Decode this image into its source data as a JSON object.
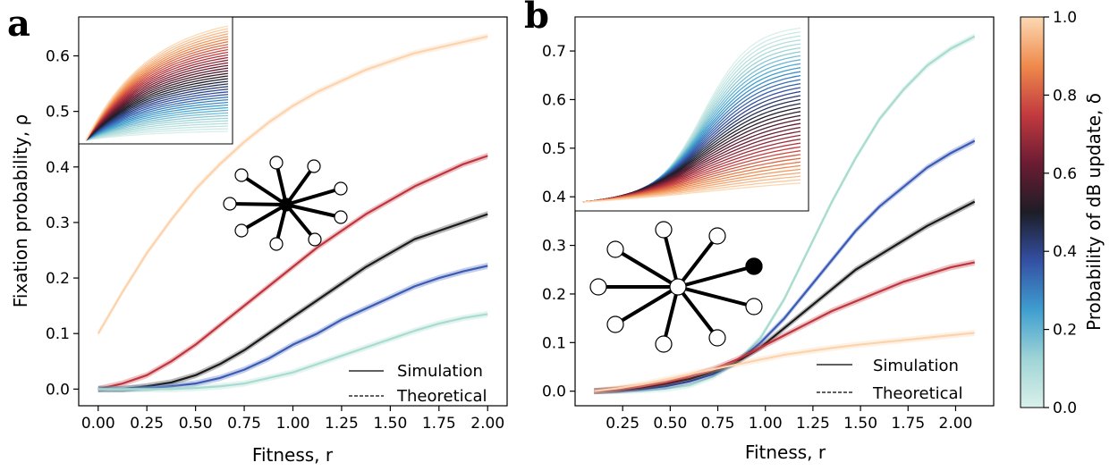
{
  "figure": {
    "panel_a_letter": "a",
    "panel_b_letter": "b"
  },
  "colorbar": {
    "label": "Probability of dB update, δ",
    "ticks": [
      "0.0",
      "0.2",
      "0.4",
      "0.6",
      "0.8",
      "1.0"
    ],
    "colors": [
      "#d9f0ea",
      "#9fd4d6",
      "#3f9ed0",
      "#3450a3",
      "#1d1d26",
      "#6b1c33",
      "#c23a3f",
      "#ef8a4c",
      "#fcd9b4"
    ]
  },
  "chart_data": [
    {
      "type": "line",
      "panel": "a",
      "xlabel": "Fitness, r",
      "ylabel": "Fixation probability, ρ",
      "xlim": [
        -0.1,
        2.1
      ],
      "ylim": [
        -0.03,
        0.67
      ],
      "x_ticks": [
        "0.00",
        "0.25",
        "0.50",
        "0.75",
        "1.00",
        "1.25",
        "1.50",
        "1.75",
        "2.00"
      ],
      "y_ticks": [
        "0.0",
        "0.1",
        "0.2",
        "0.3",
        "0.4",
        "0.5",
        "0.6"
      ],
      "legend": [
        "Simulation",
        "Theoretical"
      ],
      "legend_position": "lower right",
      "x": [
        0.0,
        0.125,
        0.25,
        0.375,
        0.5,
        0.625,
        0.75,
        0.875,
        1.0,
        1.125,
        1.25,
        1.375,
        1.5,
        1.625,
        1.75,
        1.875,
        2.0
      ],
      "series": [
        {
          "delta": 1.0,
          "color": "#fcd3ad",
          "values": [
            0.1,
            0.175,
            0.245,
            0.305,
            0.36,
            0.405,
            0.445,
            0.48,
            0.51,
            0.535,
            0.555,
            0.575,
            0.59,
            0.605,
            0.615,
            0.625,
            0.635
          ]
        },
        {
          "delta": 0.75,
          "color": "#c0343d",
          "values": [
            0.0,
            0.01,
            0.025,
            0.05,
            0.08,
            0.115,
            0.15,
            0.185,
            0.22,
            0.255,
            0.285,
            0.315,
            0.34,
            0.365,
            0.385,
            0.405,
            0.42
          ]
        },
        {
          "delta": 0.5,
          "color": "#1a1a1a",
          "values": [
            0.0,
            0.0,
            0.005,
            0.012,
            0.025,
            0.045,
            0.07,
            0.1,
            0.13,
            0.16,
            0.19,
            0.22,
            0.245,
            0.27,
            0.285,
            0.3,
            0.315
          ]
        },
        {
          "delta": 0.25,
          "color": "#3b5bb5",
          "values": [
            0.0,
            0.0,
            0.002,
            0.005,
            0.01,
            0.02,
            0.035,
            0.055,
            0.08,
            0.1,
            0.125,
            0.145,
            0.165,
            0.185,
            0.2,
            0.212,
            0.222
          ]
        },
        {
          "delta": 0.0,
          "color": "#a7dccf",
          "values": [
            0.0,
            0.0,
            0.0,
            0.0,
            0.002,
            0.005,
            0.01,
            0.02,
            0.03,
            0.045,
            0.06,
            0.075,
            0.09,
            0.105,
            0.118,
            0.128,
            0.135
          ]
        }
      ]
    },
    {
      "type": "line",
      "panel": "b",
      "xlabel": "Fitness, r",
      "ylabel": "",
      "xlim": [
        0.0,
        2.2
      ],
      "ylim": [
        -0.03,
        0.77
      ],
      "x_ticks": [
        "0.25",
        "0.50",
        "0.75",
        "1.00",
        "1.25",
        "1.50",
        "1.75",
        "2.00"
      ],
      "y_ticks": [
        "0.0",
        "0.1",
        "0.2",
        "0.3",
        "0.4",
        "0.5",
        "0.6",
        "0.7"
      ],
      "legend": [
        "Simulation",
        "Theoretical"
      ],
      "legend_position": "lower right",
      "x": [
        0.1,
        0.225,
        0.35,
        0.475,
        0.6,
        0.725,
        0.85,
        0.975,
        1.1,
        1.225,
        1.35,
        1.475,
        1.6,
        1.725,
        1.85,
        1.975,
        2.1
      ],
      "series": [
        {
          "delta": 0.0,
          "color": "#a7dccf",
          "values": [
            0.0,
            0.0,
            0.002,
            0.005,
            0.012,
            0.03,
            0.06,
            0.11,
            0.19,
            0.29,
            0.39,
            0.48,
            0.56,
            0.62,
            0.67,
            0.705,
            0.73
          ]
        },
        {
          "delta": 0.25,
          "color": "#3b5bb5",
          "values": [
            0.0,
            0.002,
            0.005,
            0.01,
            0.02,
            0.035,
            0.06,
            0.1,
            0.15,
            0.21,
            0.27,
            0.33,
            0.38,
            0.42,
            0.46,
            0.49,
            0.515
          ]
        },
        {
          "delta": 0.5,
          "color": "#1a1a1a",
          "values": [
            0.0,
            0.003,
            0.008,
            0.015,
            0.025,
            0.04,
            0.06,
            0.09,
            0.13,
            0.17,
            0.21,
            0.25,
            0.28,
            0.31,
            0.34,
            0.365,
            0.39
          ]
        },
        {
          "delta": 0.75,
          "color": "#c0343d",
          "values": [
            0.0,
            0.004,
            0.01,
            0.018,
            0.03,
            0.045,
            0.065,
            0.09,
            0.115,
            0.14,
            0.165,
            0.185,
            0.205,
            0.225,
            0.24,
            0.255,
            0.265
          ]
        },
        {
          "delta": 1.0,
          "color": "#fcd3ad",
          "values": [
            0.0,
            0.006,
            0.014,
            0.024,
            0.035,
            0.045,
            0.055,
            0.065,
            0.075,
            0.082,
            0.089,
            0.095,
            0.1,
            0.105,
            0.11,
            0.115,
            0.12
          ]
        }
      ]
    }
  ]
}
